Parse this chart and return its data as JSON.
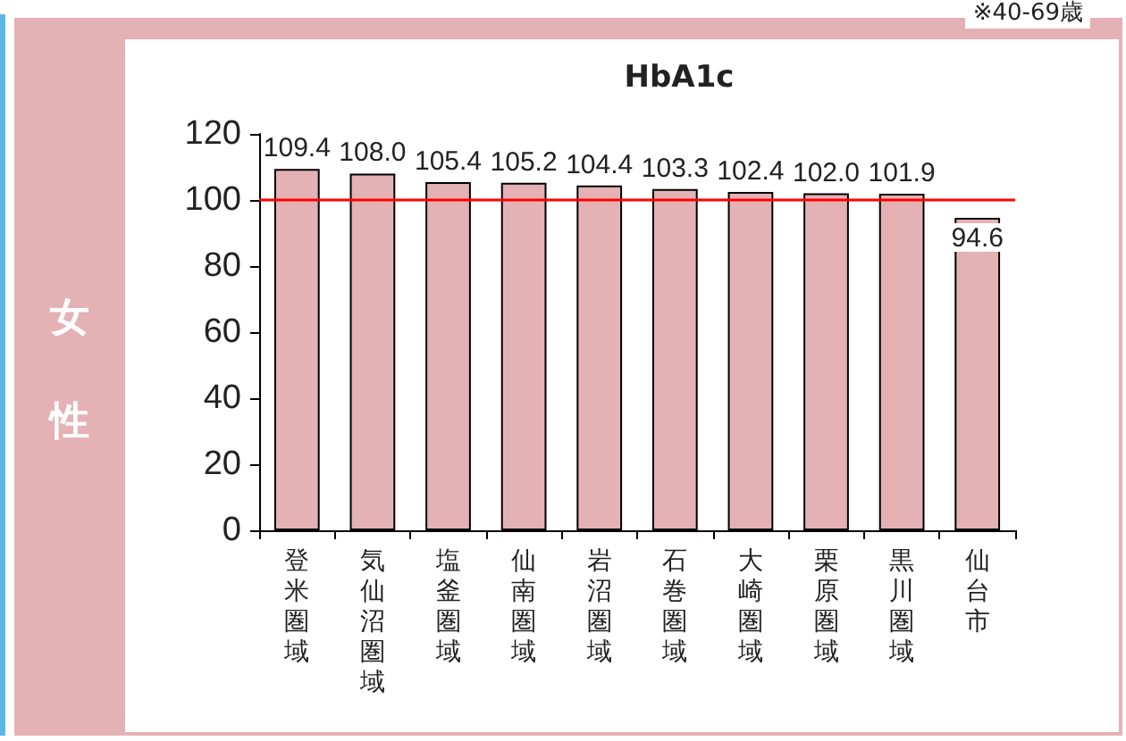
{
  "chart_data": {
    "type": "bar",
    "title": "HbA1c",
    "ylabel": "女性",
    "annotations": [
      "※40-69歳"
    ],
    "categories": [
      "登米圏域",
      "気仙沼圏域",
      "塩釜圏域",
      "仙南圏域",
      "岩沼圏域",
      "石巻圏域",
      "大崎圏域",
      "栗原圏域",
      "黒川圏域",
      "仙台市"
    ],
    "values": [
      109.4,
      108.0,
      105.4,
      105.2,
      104.4,
      103.3,
      102.4,
      102.0,
      101.9,
      94.6
    ],
    "value_labels": [
      "109.4",
      "108.0",
      "105.4",
      "105.2",
      "104.4",
      "103.3",
      "102.4",
      "102.0",
      "101.9",
      "94.6"
    ],
    "color": "#e4b1b5",
    "ylim": [
      0,
      120
    ],
    "yticks": [
      0,
      20,
      40,
      60,
      80,
      100,
      120
    ],
    "grid": false,
    "ref_lines": [
      {
        "axis": "y",
        "value": 100,
        "color": "#ff0000"
      }
    ]
  }
}
